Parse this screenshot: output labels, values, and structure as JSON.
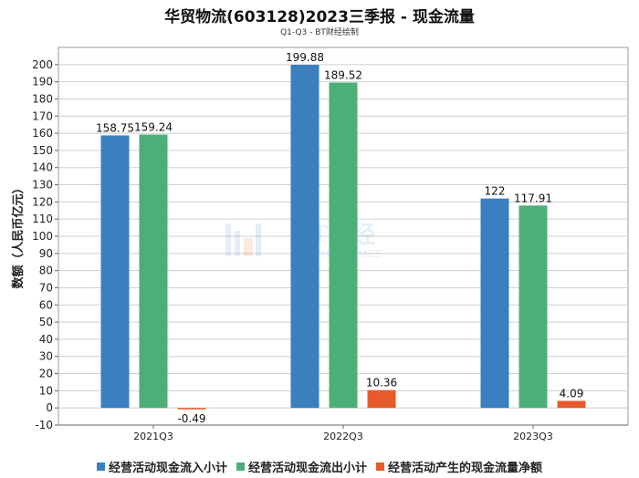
{
  "chart_data": {
    "type": "bar",
    "title": "华贸物流(603128)2023三季报 - 现金流量",
    "subtitle": "Q1-Q3 - BT财经绘制",
    "ylabel": "数额（人民币亿元）",
    "xlabel": "",
    "categories": [
      "2021Q3",
      "2022Q3",
      "2023Q3"
    ],
    "series": [
      {
        "name": "经营活动现金流入小计",
        "color": "#3a7fc0",
        "values": [
          158.75,
          199.88,
          122
        ],
        "labels": [
          "158.75",
          "199.88",
          "122"
        ]
      },
      {
        "name": "经营活动现金流出小计",
        "color": "#4caf78",
        "values": [
          159.24,
          189.52,
          117.91
        ],
        "labels": [
          "159.24",
          "189.52",
          "117.91"
        ]
      },
      {
        "name": "经营活动产生的现金流量净额",
        "color": "#e85a2a",
        "values": [
          -0.49,
          10.36,
          4.09
        ],
        "labels": [
          "-0.49",
          "10.36",
          "4.09"
        ]
      }
    ],
    "ylim": [
      -10,
      210
    ],
    "yticks": [
      -10,
      0,
      10,
      20,
      30,
      40,
      50,
      60,
      70,
      80,
      90,
      100,
      110,
      120,
      130,
      140,
      150,
      160,
      170,
      180,
      190,
      200
    ],
    "grid": true,
    "legend": "bottom"
  }
}
